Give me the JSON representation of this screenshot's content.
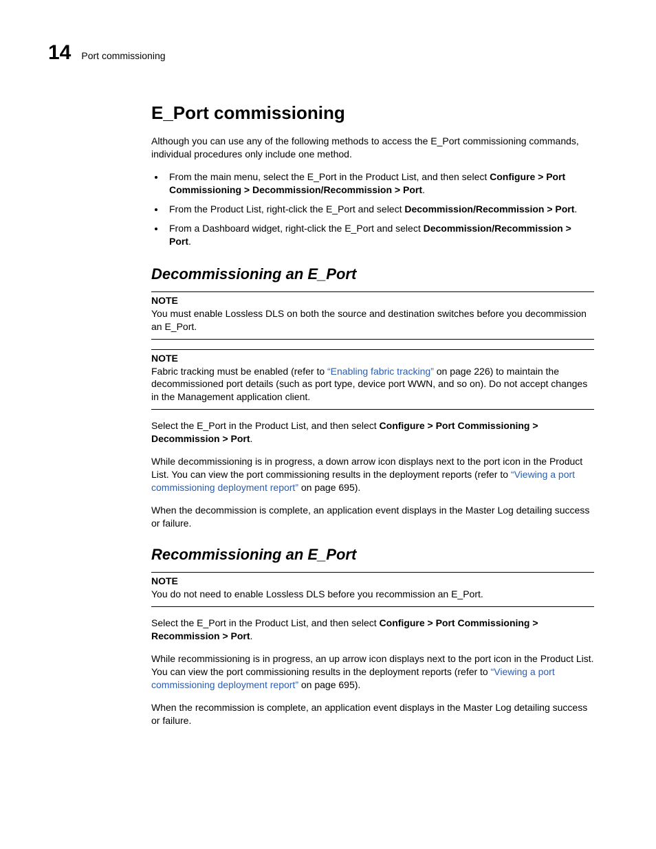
{
  "header": {
    "chapter_number": "14",
    "running_title": "Port commissioning"
  },
  "section": {
    "title": "E_Port commissioning",
    "intro": "Although you can use any of the following methods to access the E_Port commissioning commands, individual procedures only include one method.",
    "bullets": [
      {
        "pre": "From the main menu, select the E_Port in the Product List, and then select ",
        "bold": "Configure > Port Commissioning > Decommission/Recommission > Port",
        "post": "."
      },
      {
        "pre": "From the Product List, right-click the E_Port and select ",
        "bold": "Decommission/Recommission > Port",
        "post": "."
      },
      {
        "pre": "From a Dashboard widget, right-click the E_Port and select ",
        "bold": "Decommission/Recommission > Port",
        "post": "."
      }
    ]
  },
  "decommission": {
    "title": "Decommissioning an E_Port",
    "note1": {
      "label": "NOTE",
      "body": "You must enable Lossless DLS on both the source and destination switches before you decommission an E_Port."
    },
    "note2": {
      "label": "NOTE",
      "body_pre": "Fabric tracking must be enabled (refer to ",
      "link_text": "“Enabling fabric tracking”",
      "body_post": " on page 226) to maintain the decommissioned port details (such as port type, device port WWN, and so on). Do not accept changes in the Management application client."
    },
    "p1_pre": "Select the E_Port in the Product List, and then select ",
    "p1_bold": "Configure > Port Commissioning > Decommission > Port",
    "p1_post": ".",
    "p2_pre": "While decommissioning is in progress, a down arrow icon displays next to the port icon in the Product List. You can view the port commissioning results in the deployment reports (refer to ",
    "p2_link": "“Viewing a port commissioning deployment report”",
    "p2_post": " on page 695).",
    "p3": "When the decommission is complete, an application event displays in the Master Log detailing success or failure."
  },
  "recommission": {
    "title": "Recommissioning an E_Port",
    "note": {
      "label": "NOTE",
      "body": "You do not need to enable Lossless DLS before you recommission an E_Port."
    },
    "p1_pre": "Select the E_Port in the Product List, and then select ",
    "p1_bold": "Configure > Port Commissioning > Recommission > Port",
    "p1_post": ".",
    "p2_pre": "While recommissioning is in progress, an up arrow icon displays next to the port icon in the Product List. You can view the port commissioning results in the deployment reports (refer to ",
    "p2_link": "“Viewing a port commissioning deployment report”",
    "p2_post": " on page 695).",
    "p3": "When the recommission is complete, an application event displays in the Master Log detailing success or failure."
  },
  "colors": {
    "link": "#2a5db0",
    "text": "#000000",
    "background": "#ffffff"
  },
  "typography": {
    "body_fontsize": 14,
    "h1_fontsize": 26,
    "h2_fontsize": 22,
    "chapter_num_fontsize": 30
  }
}
